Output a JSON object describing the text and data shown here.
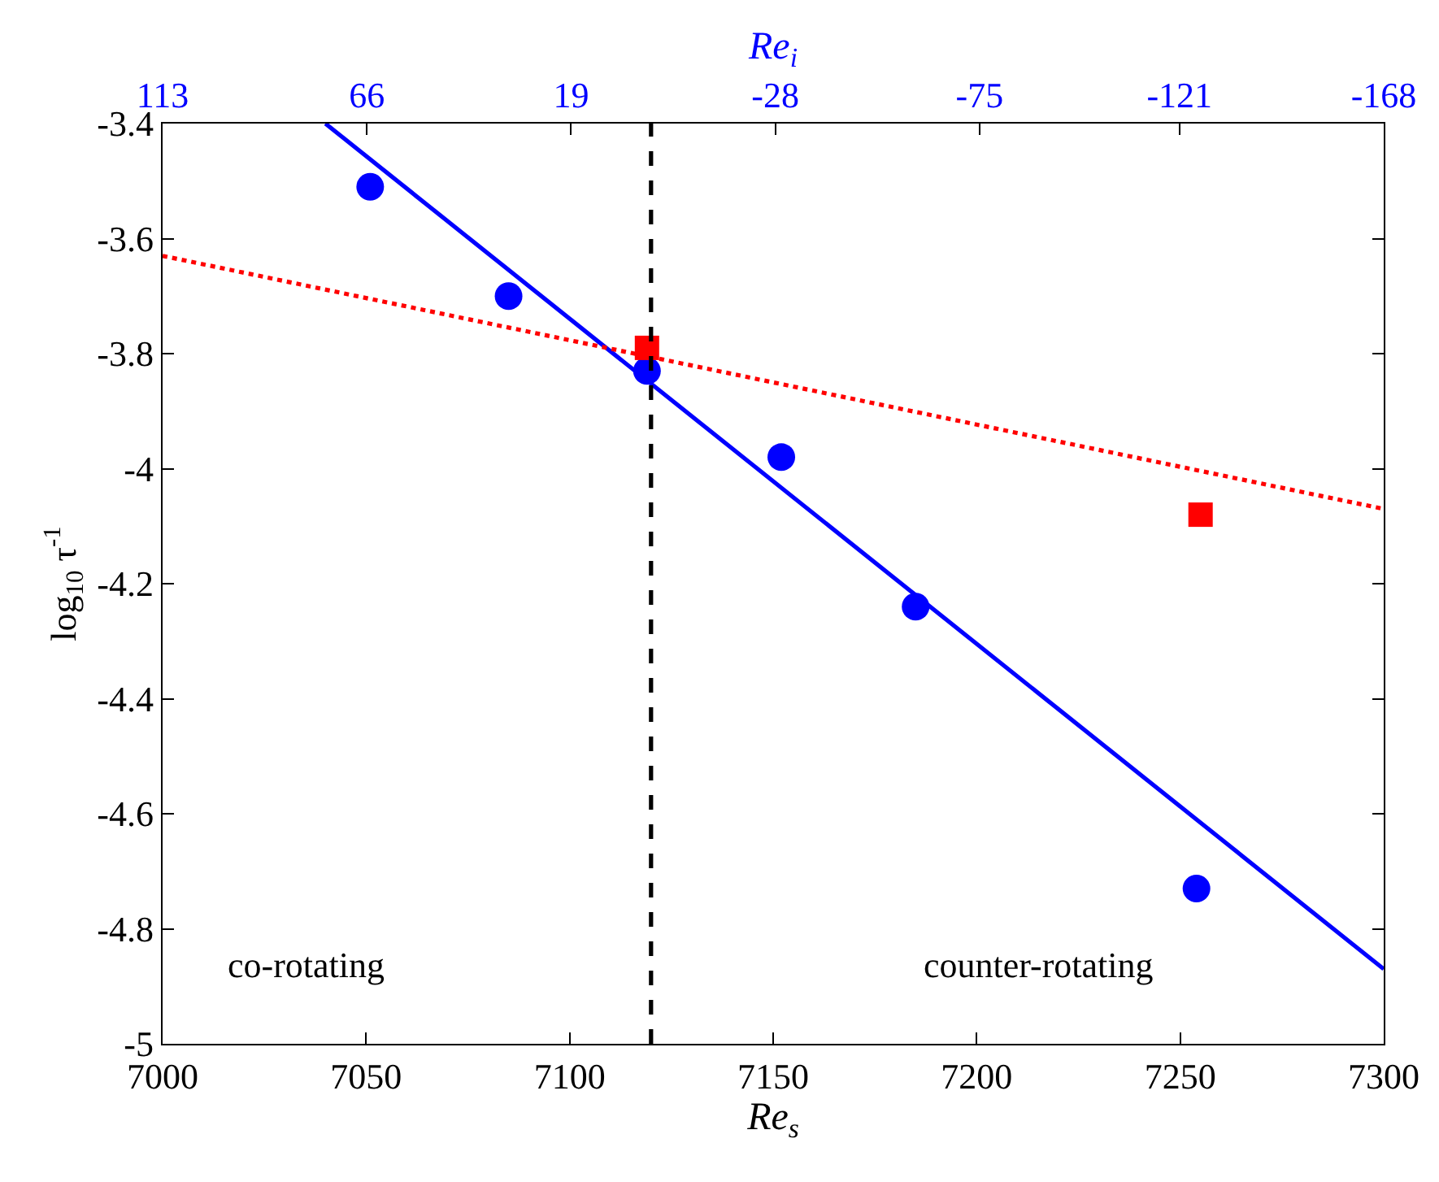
{
  "chart_data": {
    "type": "scatter",
    "xlabel": "Re$_{s}$",
    "x2label": "Re$_{i}$",
    "ylabel": "log$_{10}$ τ$^{-1}$",
    "annotations": [
      "co-rotating",
      "counter-rotating"
    ],
    "series": [
      {
        "color": "#0000ff",
        "marker": "circle",
        "x": [
          7051,
          7085,
          7119,
          7152,
          7185,
          7254
        ],
        "values": [
          -3.51,
          -3.7,
          -3.83,
          -3.98,
          -4.24,
          -4.73
        ]
      },
      {
        "color": "#ff0000",
        "marker": "square",
        "x": [
          7119,
          7255
        ],
        "values": [
          -3.79,
          -4.08
        ]
      },
      {
        "type": "line",
        "color": "#0000ff",
        "line_style": "solid",
        "x": [
          7040,
          7300
        ],
        "values": [
          -3.4,
          -4.87
        ]
      },
      {
        "type": "line",
        "color": "#ff0000",
        "line_style": "dotted",
        "x": [
          7000,
          7300
        ],
        "values": [
          -3.63,
          -4.07
        ]
      }
    ],
    "ref_lines": [
      {
        "axis": "x",
        "value": 7120,
        "color": "#000000",
        "line_style": "dashed"
      }
    ],
    "xlim": [
      7000,
      7300
    ],
    "xticks": [
      7000,
      7050,
      7100,
      7150,
      7200,
      7250,
      7300
    ],
    "x2lim": [
      113,
      -168
    ],
    "x2ticks": [
      113,
      66,
      19,
      -28,
      -75,
      -121,
      -168
    ],
    "ylim": [
      -5,
      -3.4
    ],
    "yticks": [
      -5,
      -4.8,
      -4.6,
      -4.4,
      -4.2,
      -4,
      -3.8,
      -3.6,
      -3.4
    ]
  }
}
